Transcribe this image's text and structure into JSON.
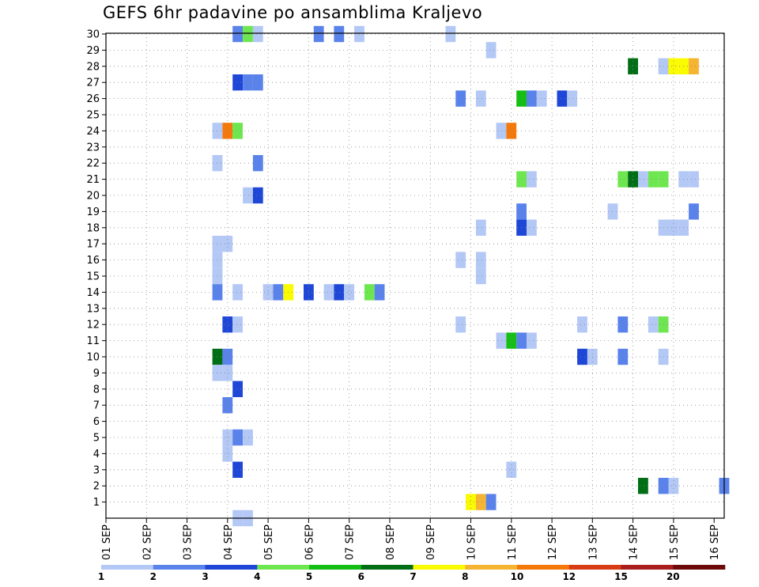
{
  "chart_data": {
    "type": "heatmap",
    "title": "GEFS 6hr padavine po ansamblima Kraljevo",
    "xlabel": "",
    "ylabel": "",
    "x_ticks": [
      "01 SEP",
      "02 SEP",
      "03 SEP",
      "04 SEP",
      "05 SEP",
      "06 SEP",
      "07 SEP",
      "08 SEP",
      "09 SEP",
      "10 SEP",
      "11 SEP",
      "12 SEP",
      "13 SEP",
      "14 SEP",
      "15 SEP",
      "16 SEP"
    ],
    "y_ticks": [
      "1",
      "2",
      "3",
      "4",
      "5",
      "6",
      "7",
      "8",
      "9",
      "10",
      "11",
      "12",
      "13",
      "14",
      "15",
      "16",
      "17",
      "18",
      "19",
      "20",
      "21",
      "22",
      "23",
      "24",
      "25",
      "26",
      "27",
      "28",
      "29",
      "30"
    ],
    "x_range_days": [
      1,
      16
    ],
    "y_range": [
      0,
      30
    ],
    "grid": true,
    "legend_position": "bottom",
    "legend_ticks": [
      "1",
      "2",
      "3",
      "4",
      "5",
      "6",
      "7",
      "8",
      "10",
      "12",
      "15",
      "20"
    ],
    "levels": [
      {
        "min": 1,
        "max": 2,
        "color": "#b4c8f5"
      },
      {
        "min": 2,
        "max": 3,
        "color": "#5a82eb"
      },
      {
        "min": 3,
        "max": 4,
        "color": "#1e46d7"
      },
      {
        "min": 4,
        "max": 5,
        "color": "#6ee650"
      },
      {
        "min": 5,
        "max": 6,
        "color": "#14be14"
      },
      {
        "min": 6,
        "max": 7,
        "color": "#006e14"
      },
      {
        "min": 7,
        "max": 8,
        "color": "#fafa00"
      },
      {
        "min": 8,
        "max": 10,
        "color": "#f5b432"
      },
      {
        "min": 10,
        "max": 12,
        "color": "#f5780a"
      },
      {
        "min": 12,
        "max": 15,
        "color": "#d73c14"
      },
      {
        "min": 15,
        "max": 20,
        "color": "#aa1e1e"
      },
      {
        "min": 20,
        "max": 30,
        "color": "#6e0a0a"
      }
    ],
    "cells": [
      {
        "member": 30,
        "time": [
          4,
          1
        ],
        "level": 2
      },
      {
        "member": 30,
        "time": [
          4,
          2
        ],
        "level": 4
      },
      {
        "member": 30,
        "time": [
          4,
          3
        ],
        "level": 1
      },
      {
        "member": 30,
        "time": [
          6,
          1
        ],
        "level": 2
      },
      {
        "member": 30,
        "time": [
          6,
          3
        ],
        "level": 2
      },
      {
        "member": 30,
        "time": [
          7,
          1
        ],
        "level": 1
      },
      {
        "member": 30,
        "time": [
          9,
          2
        ],
        "level": 1
      },
      {
        "member": 29,
        "time": [
          10,
          2
        ],
        "level": 1
      },
      {
        "member": 28,
        "time": [
          14,
          0
        ],
        "level": 6
      },
      {
        "member": 28,
        "time": [
          14,
          3
        ],
        "level": 1
      },
      {
        "member": 28,
        "time": [
          15,
          0
        ],
        "level": 7
      },
      {
        "member": 28,
        "time": [
          15,
          1
        ],
        "level": 7
      },
      {
        "member": 28,
        "time": [
          15,
          2
        ],
        "level": 8
      },
      {
        "member": 27,
        "time": [
          4,
          1
        ],
        "level": 3
      },
      {
        "member": 27,
        "time": [
          4,
          2
        ],
        "level": 2
      },
      {
        "member": 27,
        "time": [
          4,
          3
        ],
        "level": 2
      },
      {
        "member": 26,
        "time": [
          9,
          3
        ],
        "level": 2
      },
      {
        "member": 26,
        "time": [
          10,
          1
        ],
        "level": 1
      },
      {
        "member": 26,
        "time": [
          11,
          1
        ],
        "level": 5
      },
      {
        "member": 26,
        "time": [
          11,
          2
        ],
        "level": 2
      },
      {
        "member": 26,
        "time": [
          11,
          3
        ],
        "level": 1
      },
      {
        "member": 26,
        "time": [
          12,
          1
        ],
        "level": 3
      },
      {
        "member": 26,
        "time": [
          12,
          2
        ],
        "level": 1
      },
      {
        "member": 24,
        "time": [
          3,
          3
        ],
        "level": 1
      },
      {
        "member": 24,
        "time": [
          4,
          0
        ],
        "level": 9
      },
      {
        "member": 24,
        "time": [
          4,
          1
        ],
        "level": 4
      },
      {
        "member": 24,
        "time": [
          10,
          3
        ],
        "level": 1
      },
      {
        "member": 24,
        "time": [
          11,
          0
        ],
        "level": 9
      },
      {
        "member": 22,
        "time": [
          3,
          3
        ],
        "level": 1
      },
      {
        "member": 22,
        "time": [
          4,
          3
        ],
        "level": 2
      },
      {
        "member": 21,
        "time": [
          11,
          1
        ],
        "level": 4
      },
      {
        "member": 21,
        "time": [
          11,
          2
        ],
        "level": 1
      },
      {
        "member": 21,
        "time": [
          13,
          3
        ],
        "level": 4
      },
      {
        "member": 21,
        "time": [
          14,
          0
        ],
        "level": 6
      },
      {
        "member": 21,
        "time": [
          14,
          1
        ],
        "level": 1
      },
      {
        "member": 21,
        "time": [
          14,
          2
        ],
        "level": 4
      },
      {
        "member": 21,
        "time": [
          14,
          3
        ],
        "level": 4
      },
      {
        "member": 21,
        "time": [
          15,
          1
        ],
        "level": 1
      },
      {
        "member": 21,
        "time": [
          15,
          2
        ],
        "level": 1
      },
      {
        "member": 20,
        "time": [
          4,
          2
        ],
        "level": 1
      },
      {
        "member": 20,
        "time": [
          4,
          3
        ],
        "level": 3
      },
      {
        "member": 19,
        "time": [
          11,
          1
        ],
        "level": 2
      },
      {
        "member": 19,
        "time": [
          13,
          2
        ],
        "level": 1
      },
      {
        "member": 19,
        "time": [
          15,
          2
        ],
        "level": 2
      },
      {
        "member": 18,
        "time": [
          10,
          1
        ],
        "level": 1
      },
      {
        "member": 18,
        "time": [
          11,
          1
        ],
        "level": 3
      },
      {
        "member": 18,
        "time": [
          11,
          2
        ],
        "level": 1
      },
      {
        "member": 18,
        "time": [
          14,
          3
        ],
        "level": 1
      },
      {
        "member": 18,
        "time": [
          15,
          0
        ],
        "level": 1
      },
      {
        "member": 18,
        "time": [
          15,
          1
        ],
        "level": 1
      },
      {
        "member": 17,
        "time": [
          3,
          3
        ],
        "level": 1
      },
      {
        "member": 17,
        "time": [
          4,
          0
        ],
        "level": 1
      },
      {
        "member": 16,
        "time": [
          3,
          3
        ],
        "level": 1
      },
      {
        "member": 16,
        "time": [
          9,
          3
        ],
        "level": 1
      },
      {
        "member": 16,
        "time": [
          10,
          1
        ],
        "level": 1
      },
      {
        "member": 15,
        "time": [
          3,
          3
        ],
        "level": 1
      },
      {
        "member": 15,
        "time": [
          10,
          1
        ],
        "level": 1
      },
      {
        "member": 14,
        "time": [
          3,
          3
        ],
        "level": 2
      },
      {
        "member": 14,
        "time": [
          4,
          1
        ],
        "level": 1
      },
      {
        "member": 14,
        "time": [
          5,
          0
        ],
        "level": 1
      },
      {
        "member": 14,
        "time": [
          5,
          1
        ],
        "level": 2
      },
      {
        "member": 14,
        "time": [
          5,
          2
        ],
        "level": 7
      },
      {
        "member": 14,
        "time": [
          6,
          0
        ],
        "level": 3
      },
      {
        "member": 14,
        "time": [
          6,
          2
        ],
        "level": 1
      },
      {
        "member": 14,
        "time": [
          6,
          3
        ],
        "level": 3
      },
      {
        "member": 14,
        "time": [
          7,
          0
        ],
        "level": 1
      },
      {
        "member": 14,
        "time": [
          7,
          2
        ],
        "level": 4
      },
      {
        "member": 14,
        "time": [
          7,
          3
        ],
        "level": 2
      },
      {
        "member": 12,
        "time": [
          4,
          0
        ],
        "level": 3
      },
      {
        "member": 12,
        "time": [
          4,
          1
        ],
        "level": 1
      },
      {
        "member": 12,
        "time": [
          9,
          3
        ],
        "level": 1
      },
      {
        "member": 12,
        "time": [
          12,
          3
        ],
        "level": 1
      },
      {
        "member": 12,
        "time": [
          13,
          3
        ],
        "level": 2
      },
      {
        "member": 12,
        "time": [
          14,
          2
        ],
        "level": 1
      },
      {
        "member": 12,
        "time": [
          14,
          3
        ],
        "level": 4
      },
      {
        "member": 11,
        "time": [
          10,
          3
        ],
        "level": 1
      },
      {
        "member": 11,
        "time": [
          11,
          0
        ],
        "level": 5
      },
      {
        "member": 11,
        "time": [
          11,
          1
        ],
        "level": 2
      },
      {
        "member": 11,
        "time": [
          11,
          2
        ],
        "level": 1
      },
      {
        "member": 10,
        "time": [
          3,
          3
        ],
        "level": 6
      },
      {
        "member": 10,
        "time": [
          4,
          0
        ],
        "level": 2
      },
      {
        "member": 10,
        "time": [
          12,
          3
        ],
        "level": 3
      },
      {
        "member": 10,
        "time": [
          13,
          0
        ],
        "level": 1
      },
      {
        "member": 10,
        "time": [
          13,
          3
        ],
        "level": 2
      },
      {
        "member": 10,
        "time": [
          14,
          3
        ],
        "level": 1
      },
      {
        "member": 9,
        "time": [
          3,
          3
        ],
        "level": 1
      },
      {
        "member": 9,
        "time": [
          4,
          0
        ],
        "level": 1
      },
      {
        "member": 8,
        "time": [
          4,
          1
        ],
        "level": 3
      },
      {
        "member": 7,
        "time": [
          4,
          0
        ],
        "level": 2
      },
      {
        "member": 5,
        "time": [
          4,
          0
        ],
        "level": 1
      },
      {
        "member": 5,
        "time": [
          4,
          1
        ],
        "level": 2
      },
      {
        "member": 5,
        "time": [
          4,
          2
        ],
        "level": 1
      },
      {
        "member": 4,
        "time": [
          4,
          0
        ],
        "level": 1
      },
      {
        "member": 3,
        "time": [
          4,
          1
        ],
        "level": 3
      },
      {
        "member": 3,
        "time": [
          11,
          0
        ],
        "level": 1
      },
      {
        "member": 2,
        "time": [
          14,
          1
        ],
        "level": 6
      },
      {
        "member": 2,
        "time": [
          14,
          3
        ],
        "level": 2
      },
      {
        "member": 2,
        "time": [
          15,
          0
        ],
        "level": 1
      },
      {
        "member": 2,
        "time": [
          16,
          1
        ],
        "level": 2
      },
      {
        "member": 1,
        "time": [
          10,
          0
        ],
        "level": 7
      },
      {
        "member": 1,
        "time": [
          10,
          1
        ],
        "level": 8
      },
      {
        "member": 1,
        "time": [
          10,
          2
        ],
        "level": 2
      },
      {
        "member": 0,
        "time": [
          4,
          1
        ],
        "level": 1
      },
      {
        "member": 0,
        "time": [
          4,
          2
        ],
        "level": 1
      }
    ]
  }
}
